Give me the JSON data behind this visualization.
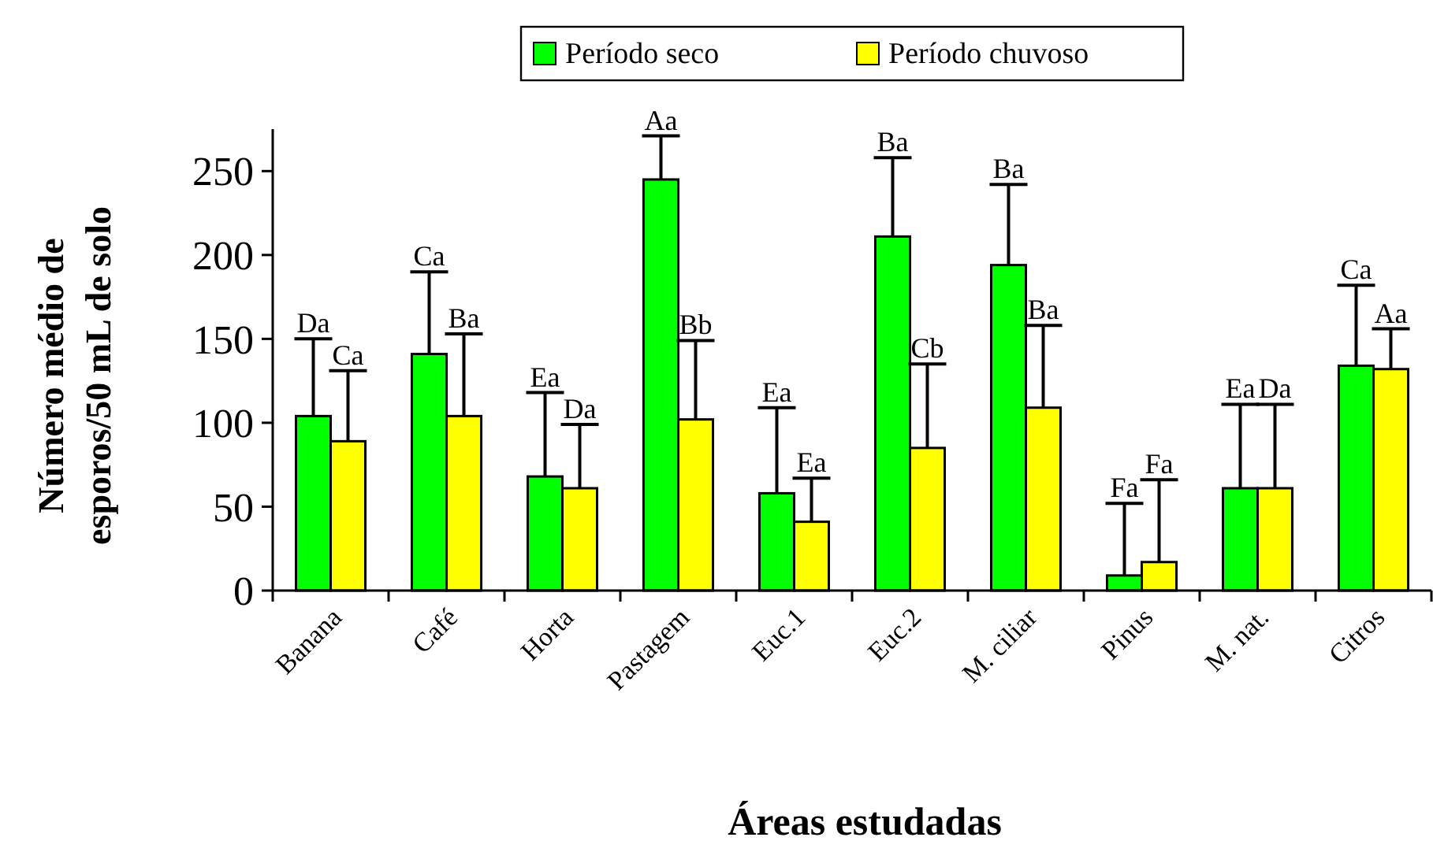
{
  "chart_data": {
    "type": "bar",
    "xlabel": "Áreas estudadas",
    "ylabel": "Número médio de esporos/50 mL de solo",
    "categories": [
      "Banana",
      "Café",
      "Horta",
      "Pastagem",
      "Euc.1",
      "Euc.2",
      "M. ciliar",
      "Pinus",
      "M. nat.",
      "Citros"
    ],
    "series": [
      {
        "name": "Período seco",
        "color": "#00ff00",
        "values": [
          104,
          141,
          68,
          245,
          58,
          211,
          194,
          9,
          61,
          134
        ],
        "errors": [
          [
            104,
            150
          ],
          [
            141,
            190
          ],
          [
            68,
            118
          ],
          [
            245,
            271
          ],
          [
            58,
            109
          ],
          [
            211,
            258
          ],
          [
            194,
            242
          ],
          [
            9,
            52
          ],
          [
            61,
            111
          ],
          [
            134,
            182
          ]
        ]
      },
      {
        "name": "Período chuvoso",
        "color": "#ffff00",
        "values": [
          89,
          104,
          61,
          102,
          41,
          85,
          109,
          17,
          61,
          132
        ],
        "errors": [
          [
            89,
            131
          ],
          [
            104,
            153
          ],
          [
            61,
            99
          ],
          [
            102,
            149
          ],
          [
            41,
            67
          ],
          [
            85,
            135
          ],
          [
            109,
            158
          ],
          [
            17,
            66
          ],
          [
            61,
            111
          ],
          [
            132,
            156
          ]
        ]
      }
    ],
    "ylim": [
      0,
      275
    ],
    "yticks": [
      0,
      50,
      100,
      150,
      200,
      250
    ],
    "grid": false,
    "legend": "top",
    "annotations": [
      {
        "text": "Da",
        "x": "Banana",
        "y": 150
      },
      {
        "text": "Ca",
        "x": "Banana",
        "y": 131
      },
      {
        "text": "Ca",
        "x": "Café",
        "y": 190
      },
      {
        "text": "Ba",
        "x": "Café",
        "y": 153
      },
      {
        "text": "Ea",
        "x": "Horta",
        "y": 118
      },
      {
        "text": "Da",
        "x": "Horta",
        "y": 99
      },
      {
        "text": "Aa",
        "x": "Pastagem",
        "y": 271
      },
      {
        "text": "Bb",
        "x": "Pastagem",
        "y": 149
      },
      {
        "text": "Ea",
        "x": "Euc.1",
        "y": 109
      },
      {
        "text": "Ea",
        "x": "Euc.1",
        "y": 67
      },
      {
        "text": "Ba",
        "x": "Euc.2",
        "y": 258
      },
      {
        "text": "Cb",
        "x": "Euc.2",
        "y": 135
      },
      {
        "text": "Ba",
        "x": "M. ciliar",
        "y": 242
      },
      {
        "text": "Ba",
        "x": "M. ciliar",
        "y": 158
      },
      {
        "text": "Fa",
        "x": "Pinus",
        "y": 52
      },
      {
        "text": "Fa",
        "x": "Pinus",
        "y": 66
      },
      {
        "text": "Ea",
        "x": "M. nat.",
        "y": 111
      },
      {
        "text": "Da",
        "x": "M. nat.",
        "y": 111
      },
      {
        "text": "Ca",
        "x": "Citros",
        "y": 182
      },
      {
        "text": "Aa",
        "x": "Citros",
        "y": 156
      }
    ]
  }
}
